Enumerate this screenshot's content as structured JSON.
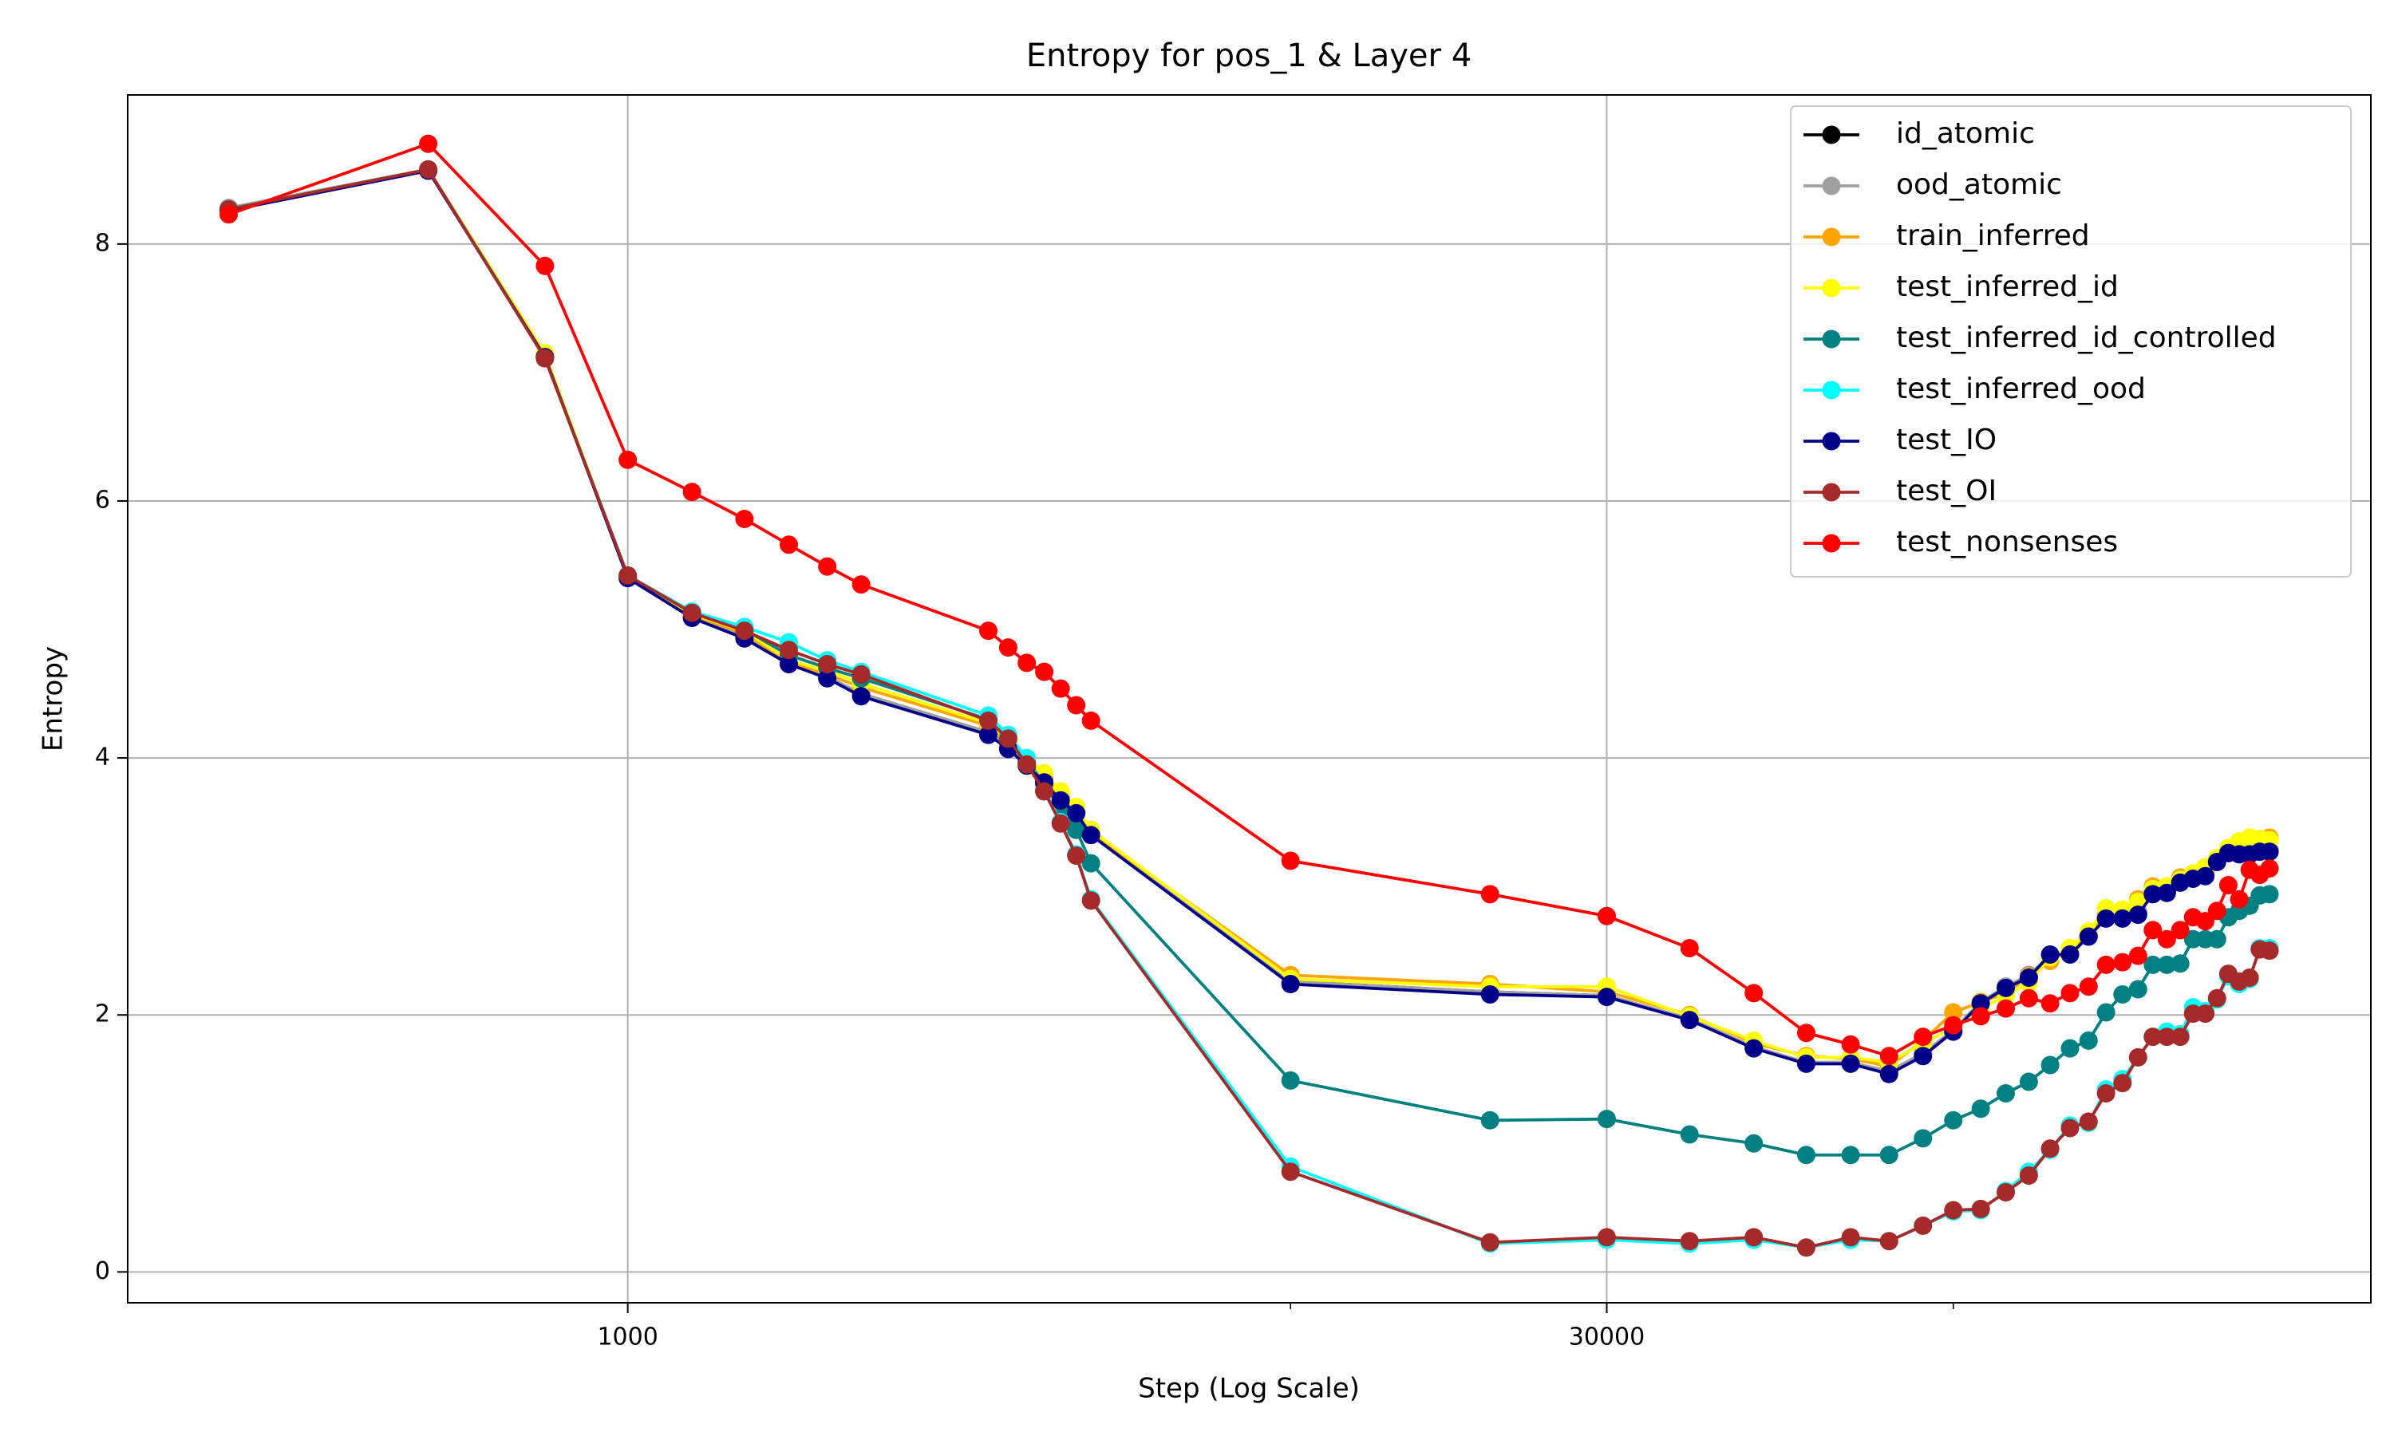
{
  "chart_data": {
    "type": "line",
    "title": "Entropy for pos_1 & Layer 4",
    "xlabel": "Step (Log Scale)",
    "ylabel": "Entropy",
    "xscale": "log",
    "grid": true,
    "legend": "upper right",
    "xlim": [
      176,
      426600
    ],
    "ylim": [
      -0.24,
      9.16
    ],
    "xticks": [
      1000,
      30000
    ],
    "xticks_minor": [
      10000,
      100000
    ],
    "yticks": [
      0,
      2,
      4,
      6,
      8
    ],
    "x": [
      250,
      500,
      750,
      1000,
      1250,
      1500,
      1750,
      2000,
      2250,
      3500,
      3750,
      4000,
      4250,
      4500,
      4750,
      5000,
      10000,
      20000,
      30000,
      40000,
      50000,
      60000,
      70000,
      80000,
      90000,
      100000,
      110000,
      120000,
      130000,
      140000,
      150000,
      160000,
      170000,
      180000,
      190000,
      200000,
      210000,
      220000,
      230000,
      240000,
      250000,
      260000,
      270000,
      280000,
      290000,
      300000
    ],
    "series": [
      {
        "name": "id_atomic",
        "color": "#000000",
        "values": [
          8.28,
          8.58,
          7.12,
          5.41,
          5.1,
          4.95,
          4.75,
          4.63,
          4.5,
          4.2,
          4.1,
          3.96,
          3.83,
          3.7,
          3.58,
          3.42,
          2.26,
          2.18,
          2.15,
          1.97,
          1.75,
          1.63,
          1.63,
          1.56,
          1.7,
          1.88,
          2.1,
          2.22,
          2.31,
          2.46,
          2.48,
          2.62,
          2.76,
          2.76,
          2.8,
          2.95,
          2.96,
          3.04,
          3.07,
          3.1,
          3.2,
          3.26,
          3.26,
          3.26,
          3.28,
          3.28
        ]
      },
      {
        "name": "ood_atomic",
        "color": "#a0a0a0",
        "values": [
          8.28,
          8.58,
          7.12,
          5.41,
          5.1,
          4.95,
          4.75,
          4.63,
          4.5,
          4.2,
          4.1,
          3.96,
          3.83,
          3.7,
          3.58,
          3.42,
          2.26,
          2.18,
          2.15,
          1.97,
          1.75,
          1.63,
          1.63,
          1.56,
          1.7,
          1.88,
          2.1,
          2.22,
          2.31,
          2.46,
          2.48,
          2.62,
          2.76,
          2.76,
          2.8,
          2.95,
          2.96,
          3.04,
          3.07,
          3.1,
          3.2,
          3.26,
          3.26,
          3.26,
          3.28,
          3.28
        ]
      },
      {
        "name": "train_inferred",
        "color": "#ffa500",
        "values": [
          8.27,
          8.58,
          7.14,
          5.41,
          5.11,
          4.97,
          4.74,
          4.65,
          4.55,
          4.25,
          4.12,
          3.98,
          3.86,
          3.72,
          3.6,
          3.42,
          2.31,
          2.24,
          2.18,
          2.0,
          1.78,
          1.68,
          1.66,
          1.6,
          1.8,
          2.02,
          2.1,
          2.17,
          2.3,
          2.42,
          2.5,
          2.62,
          2.78,
          2.8,
          2.9,
          3.0,
          3.0,
          3.07,
          3.1,
          3.12,
          3.2,
          3.3,
          3.3,
          3.33,
          3.35,
          3.38
        ]
      },
      {
        "name": "test_inferred_id",
        "color": "#ffff00",
        "values": [
          8.27,
          8.58,
          7.15,
          5.41,
          5.12,
          4.99,
          4.76,
          4.68,
          4.58,
          4.27,
          4.14,
          4.0,
          3.88,
          3.74,
          3.62,
          3.44,
          2.28,
          2.22,
          2.22,
          1.99,
          1.8,
          1.67,
          1.67,
          1.63,
          1.78,
          1.9,
          2.05,
          2.15,
          2.25,
          2.45,
          2.52,
          2.65,
          2.83,
          2.82,
          2.88,
          2.98,
          3.0,
          3.05,
          3.1,
          3.15,
          3.22,
          3.3,
          3.35,
          3.38,
          3.37,
          3.36
        ]
      },
      {
        "name": "test_inferred_id_controlled",
        "color": "#008080",
        "values": [
          8.27,
          8.58,
          7.12,
          5.42,
          5.13,
          5.0,
          4.8,
          4.7,
          4.62,
          4.3,
          4.17,
          3.98,
          3.8,
          3.62,
          3.44,
          3.18,
          1.49,
          1.18,
          1.19,
          1.07,
          1.0,
          0.91,
          0.91,
          0.91,
          1.04,
          1.18,
          1.27,
          1.39,
          1.48,
          1.61,
          1.74,
          1.8,
          2.02,
          2.16,
          2.2,
          2.39,
          2.39,
          2.4,
          2.59,
          2.59,
          2.59,
          2.76,
          2.81,
          2.85,
          2.93,
          2.94
        ]
      },
      {
        "name": "test_inferred_ood",
        "color": "#00ffff",
        "values": [
          8.27,
          8.58,
          7.12,
          5.42,
          5.14,
          5.02,
          4.9,
          4.76,
          4.67,
          4.33,
          4.18,
          4.0,
          3.75,
          3.5,
          3.25,
          2.9,
          0.82,
          0.22,
          0.25,
          0.22,
          0.25,
          0.19,
          0.25,
          0.24,
          0.36,
          0.47,
          0.48,
          0.63,
          0.78,
          0.95,
          1.14,
          1.16,
          1.42,
          1.5,
          1.67,
          1.83,
          1.87,
          1.85,
          2.06,
          2.03,
          2.12,
          2.3,
          2.24,
          2.28,
          2.52,
          2.52
        ]
      },
      {
        "name": "test_IO",
        "color": "#00008b",
        "values": [
          8.26,
          8.57,
          7.12,
          5.4,
          5.09,
          4.93,
          4.73,
          4.62,
          4.48,
          4.18,
          4.07,
          3.94,
          3.81,
          3.67,
          3.57,
          3.4,
          2.24,
          2.16,
          2.14,
          1.96,
          1.74,
          1.62,
          1.62,
          1.54,
          1.68,
          1.87,
          2.09,
          2.21,
          2.29,
          2.47,
          2.47,
          2.61,
          2.75,
          2.75,
          2.78,
          2.94,
          2.95,
          3.03,
          3.06,
          3.08,
          3.19,
          3.26,
          3.25,
          3.25,
          3.27,
          3.27
        ]
      },
      {
        "name": "test_OI",
        "color": "#a52a2a",
        "values": [
          8.27,
          8.58,
          7.11,
          5.42,
          5.13,
          4.99,
          4.84,
          4.73,
          4.65,
          4.29,
          4.15,
          3.95,
          3.74,
          3.49,
          3.24,
          2.89,
          0.78,
          0.23,
          0.27,
          0.24,
          0.27,
          0.19,
          0.27,
          0.24,
          0.36,
          0.48,
          0.49,
          0.62,
          0.75,
          0.96,
          1.12,
          1.17,
          1.39,
          1.47,
          1.67,
          1.83,
          1.83,
          1.83,
          2.01,
          2.01,
          2.13,
          2.32,
          2.26,
          2.29,
          2.51,
          2.5
        ]
      },
      {
        "name": "test_nonsenses",
        "color": "#ff0000",
        "values": [
          8.23,
          8.78,
          7.83,
          6.32,
          6.07,
          5.86,
          5.66,
          5.49,
          5.35,
          4.99,
          4.86,
          4.74,
          4.67,
          4.54,
          4.41,
          4.29,
          3.2,
          2.94,
          2.77,
          2.52,
          2.17,
          1.86,
          1.77,
          1.68,
          1.83,
          1.92,
          1.99,
          2.05,
          2.13,
          2.09,
          2.17,
          2.22,
          2.39,
          2.41,
          2.46,
          2.66,
          2.59,
          2.66,
          2.76,
          2.73,
          2.81,
          3.01,
          2.9,
          3.13,
          3.09,
          3.14
        ]
      }
    ]
  }
}
